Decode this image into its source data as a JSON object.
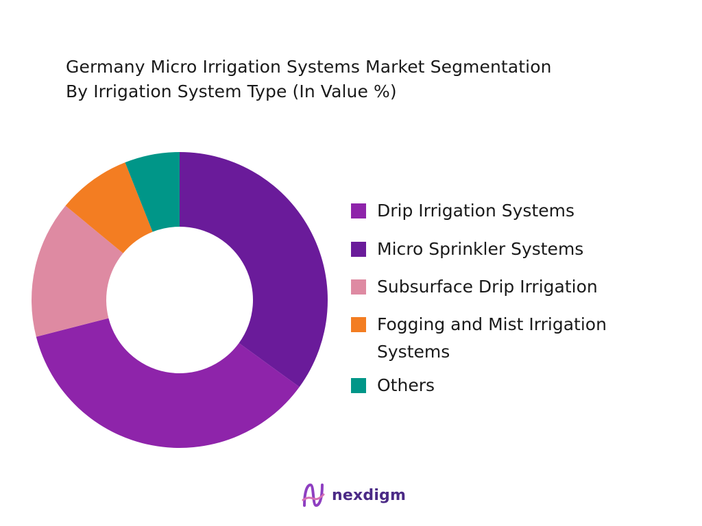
{
  "chart_data": {
    "type": "pie",
    "title_lines": [
      "Germany Micro Irrigation Systems Market Segmentation",
      "By Irrigation System Type (In Value %)"
    ],
    "donut": true,
    "legend_position": "right",
    "slices": [
      {
        "name": "Drip Irrigation Systems",
        "value": 36,
        "color": "#8e24aa"
      },
      {
        "name": "Micro Sprinkler Systems",
        "value": 35,
        "color": "#6a1b9a"
      },
      {
        "name": "Subsurface Drip Irrigation",
        "value": 15,
        "color": "#de8aa2"
      },
      {
        "name": "Fogging and Mist Irrigation Systems",
        "value": 8,
        "color": "#f37d22"
      },
      {
        "name": "Others",
        "value": 6,
        "color": "#009688"
      }
    ],
    "draw_order": [
      1,
      0,
      2,
      3,
      4
    ]
  },
  "brand": {
    "name": "nexdigm",
    "logo_icon": "nexdigm-logo-icon",
    "color": "#4b2a86"
  }
}
